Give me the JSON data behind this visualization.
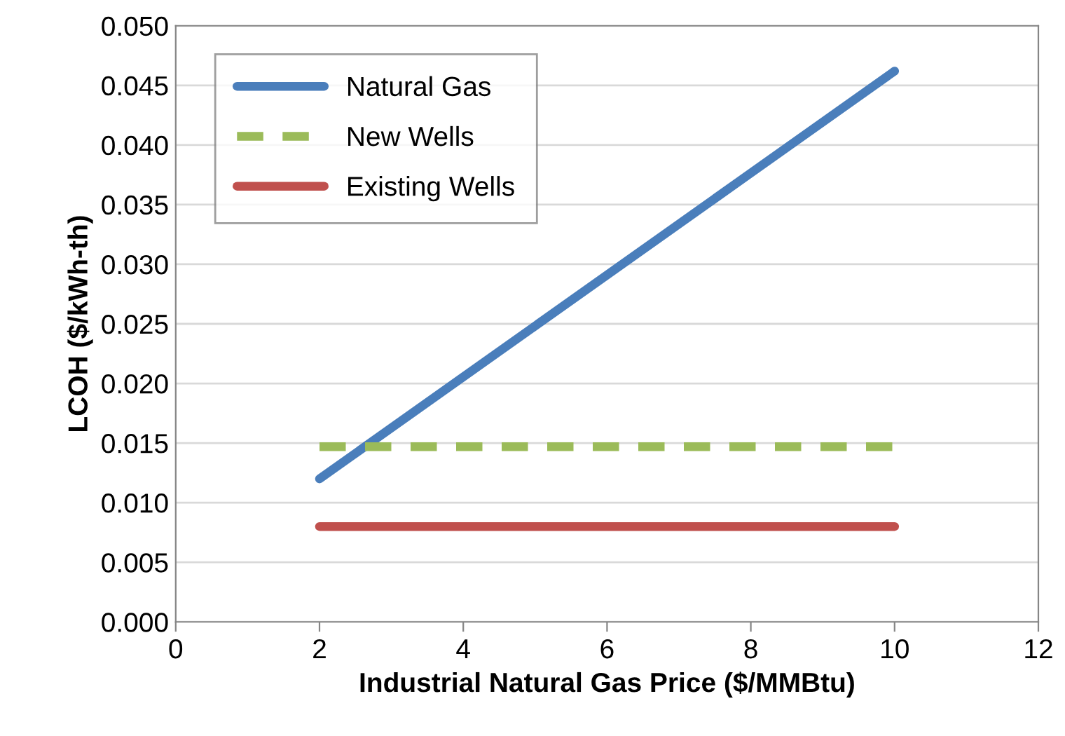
{
  "chart_data": {
    "type": "line",
    "xlabel": "Industrial Natural Gas Price ($/MMBtu)",
    "ylabel": "LCOH ($/kWh-th)",
    "x": [
      2,
      10
    ],
    "series": [
      {
        "name": "Natural Gas",
        "color": "#4a7ebb",
        "values": [
          0.012,
          0.0462
        ]
      },
      {
        "name": "New Wells",
        "color": "#9bbb59",
        "values": [
          0.0147,
          0.0147
        ],
        "line_style": "dashed"
      },
      {
        "name": "Existing Wells",
        "color": "#c0504d",
        "values": [
          0.008,
          0.008
        ]
      }
    ],
    "xlim": [
      0,
      12
    ],
    "xticks": [
      0,
      2,
      4,
      6,
      8,
      10,
      12
    ],
    "ylim": [
      0,
      0.05
    ],
    "yticks": [
      {
        "value": 0,
        "label": "0.000"
      },
      {
        "value": 0.005,
        "label": "0.005"
      },
      {
        "value": 0.01,
        "label": "0.010"
      },
      {
        "value": 0.015,
        "label": "0.015"
      },
      {
        "value": 0.02,
        "label": "0.020"
      },
      {
        "value": 0.025,
        "label": "0.025"
      },
      {
        "value": 0.03,
        "label": "0.030"
      },
      {
        "value": 0.035,
        "label": "0.035"
      },
      {
        "value": 0.04,
        "label": "0.040"
      },
      {
        "value": 0.045,
        "label": "0.045"
      },
      {
        "value": 0.05,
        "label": "0.050"
      }
    ],
    "grid": "y",
    "legend": "top left"
  }
}
